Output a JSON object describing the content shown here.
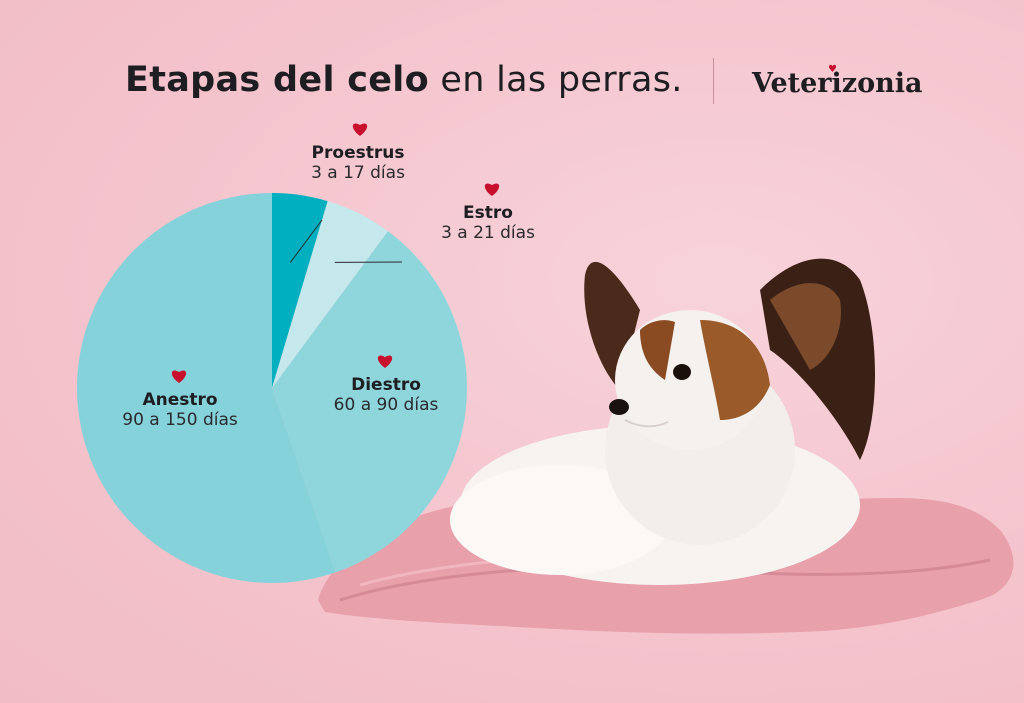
{
  "title": {
    "bold": "Etapas del celo",
    "regular": " en las perras."
  },
  "brand": "Veterizonia",
  "colors": {
    "background": "#f4c3cc",
    "heart": "#c8102e",
    "text": "#1e1e22"
  },
  "chart_data": {
    "type": "pie",
    "start_angle_deg": 0,
    "direction": "clockwise",
    "slices": [
      {
        "label": "Proestrus",
        "range": "3 a 17 días",
        "value": 10,
        "color": "#00b0c0"
      },
      {
        "label": "Estro",
        "range": "3 a 21 días",
        "value": 12,
        "color": "#c4e8ec"
      },
      {
        "label": "Diestro",
        "range": "60 a 90 días",
        "value": 75,
        "color": "#8fd6dc"
      },
      {
        "label": "Anestro",
        "range": "90 a 150 días",
        "value": 120,
        "color": "#85d2da"
      }
    ]
  },
  "photo": {
    "subject": "papillon-dog",
    "blanket_color": "#e8a0aa"
  }
}
